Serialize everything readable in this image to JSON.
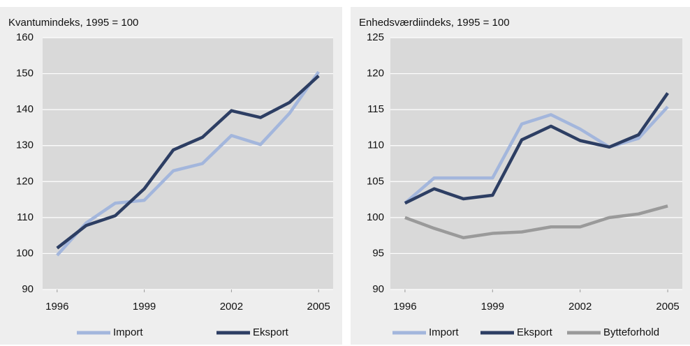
{
  "chart_data": [
    {
      "type": "line",
      "title": "Kvantumindeks, 1995 = 100",
      "x": [
        1996,
        1997,
        1998,
        1999,
        2000,
        2001,
        2002,
        2003,
        2004,
        2005
      ],
      "xlim": [
        1995.5,
        2005.5
      ],
      "xticks": [
        1996,
        1999,
        2002,
        2005
      ],
      "ylim": [
        90,
        160
      ],
      "yticks": [
        90,
        100,
        110,
        120,
        130,
        140,
        150,
        160
      ],
      "grid": true,
      "legend": "bottom",
      "series": [
        {
          "name": "Import",
          "color": "#a3b6dc",
          "values": [
            99.5,
            108.5,
            114,
            114.8,
            123,
            125,
            132.8,
            130.3,
            139,
            150.5
          ]
        },
        {
          "name": "Eksport",
          "color": "#2d3e63",
          "values": [
            101.5,
            107.8,
            110.5,
            118,
            128.8,
            132.3,
            139.7,
            137.8,
            142,
            149.4
          ]
        }
      ]
    },
    {
      "type": "line",
      "title": "Enhedsværdiindeks, 1995 = 100",
      "x": [
        1996,
        1997,
        1998,
        1999,
        2000,
        2001,
        2002,
        2003,
        2004,
        2005
      ],
      "xlim": [
        1995.5,
        2005.5
      ],
      "xticks": [
        1996,
        1999,
        2002,
        2005
      ],
      "ylim": [
        90,
        125
      ],
      "yticks": [
        90,
        95,
        100,
        105,
        110,
        115,
        120,
        125
      ],
      "grid": true,
      "legend": "bottom",
      "series": [
        {
          "name": "Import",
          "color": "#a3b6dc",
          "values": [
            102,
            105.5,
            105.5,
            105.5,
            113,
            114.3,
            112.3,
            109.8,
            111,
            115.4
          ]
        },
        {
          "name": "Eksport",
          "color": "#2d3e63",
          "values": [
            102,
            104,
            102.6,
            103.1,
            110.8,
            112.7,
            110.7,
            109.8,
            111.5,
            117.3
          ]
        },
        {
          "name": "Bytteforhold",
          "color": "#9a9a9a",
          "values": [
            100,
            98.5,
            97.2,
            97.8,
            98,
            98.7,
            98.7,
            100,
            100.5,
            101.6
          ]
        }
      ]
    }
  ]
}
